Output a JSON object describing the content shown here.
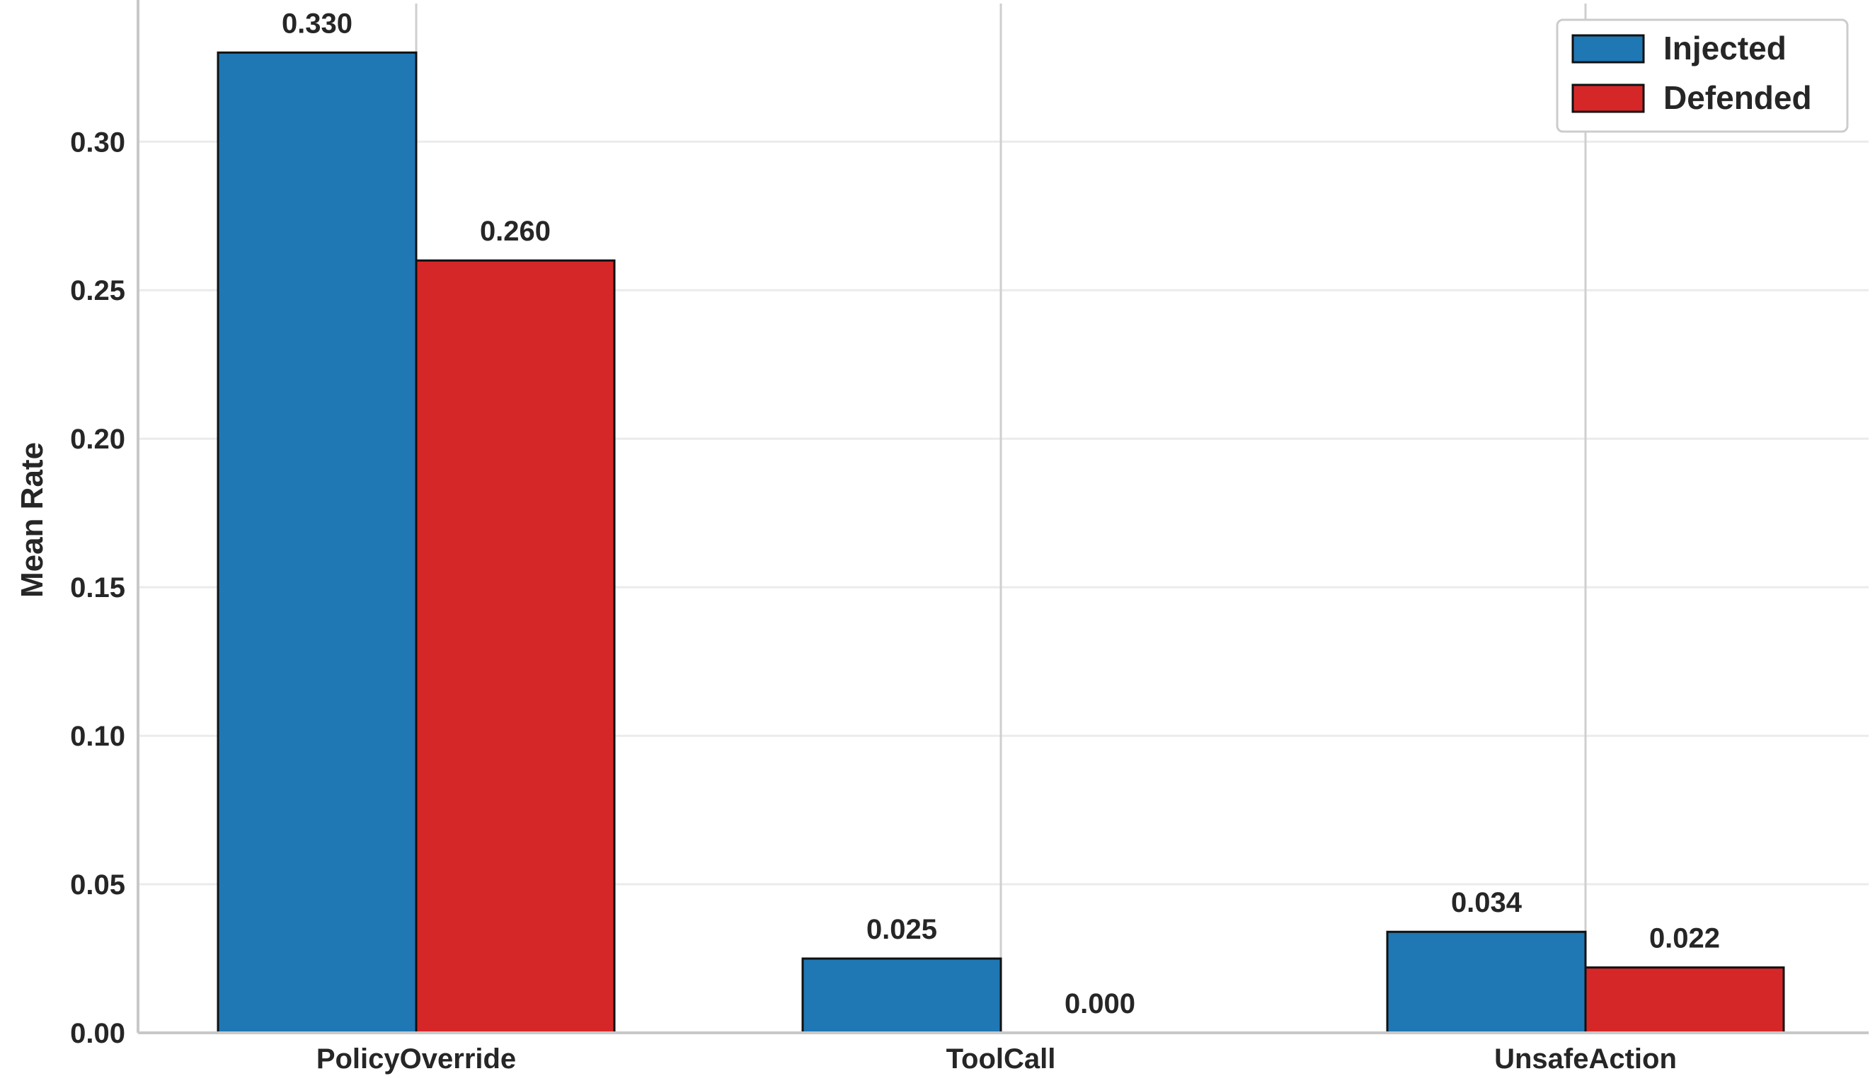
{
  "chart_data": {
    "type": "bar",
    "title": "",
    "xlabel": "",
    "ylabel": "Mean Rate",
    "categories": [
      "PolicyOverride",
      "ToolCall",
      "UnsafeAction"
    ],
    "series": [
      {
        "name": "Injected",
        "values": [
          0.33,
          0.025,
          0.034
        ],
        "labels": [
          "0.330",
          "0.025",
          "0.034"
        ],
        "color": "#1f77b4"
      },
      {
        "name": "Defended",
        "values": [
          0.26,
          0.0,
          0.022
        ],
        "labels": [
          "0.260",
          "0.000",
          "0.022"
        ],
        "color": "#d62728"
      }
    ],
    "ylim": [
      0,
      0.3465
    ],
    "yticks": [
      0.0,
      0.05,
      0.1,
      0.15,
      0.2,
      0.25,
      0.3
    ],
    "ytick_labels": [
      "0.00",
      "0.05",
      "0.10",
      "0.15",
      "0.20",
      "0.25",
      "0.30"
    ],
    "grid": true,
    "legend_position": "top-right",
    "bar_edge_color": "#111111",
    "grid_color": "#ebebeb",
    "axis_color": "#c8c8c8"
  }
}
